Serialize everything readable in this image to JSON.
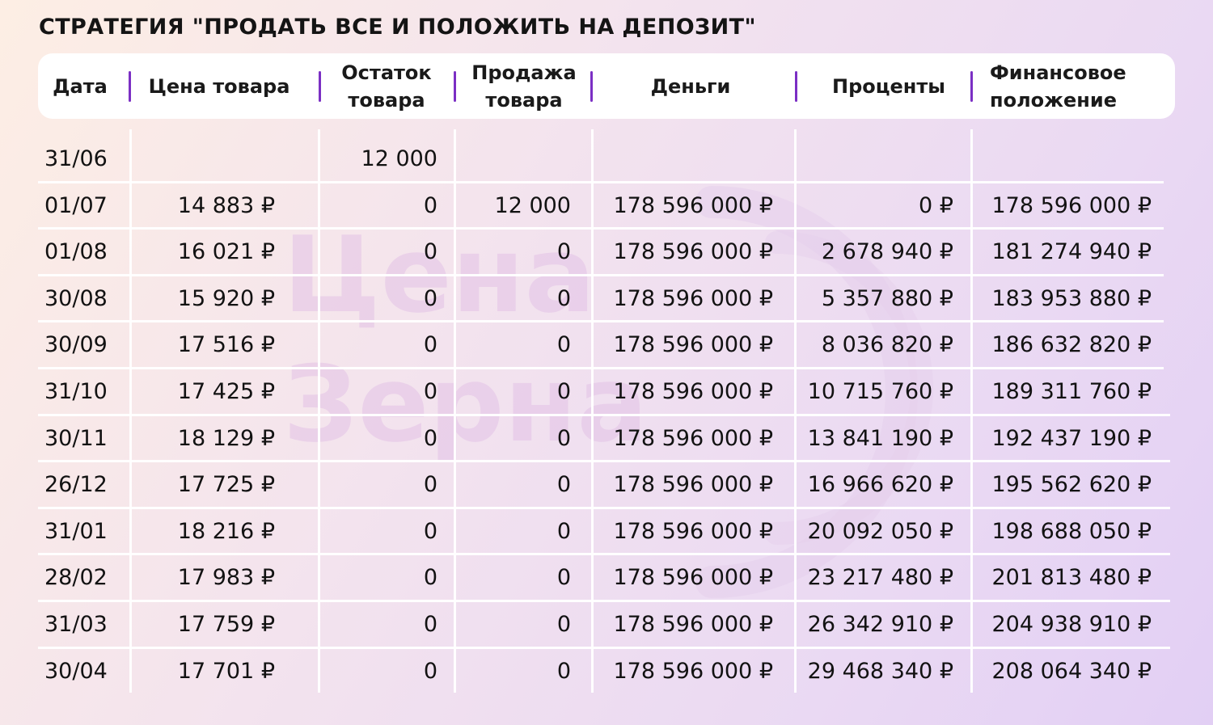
{
  "title": "СТРАТЕГИЯ \"ПРОДАТЬ ВСЕ И ПОЛОЖИТЬ НА ДЕПОЗИТ\"",
  "watermark": {
    "line1": "Цена",
    "line2": "Зерна",
    "color": "#e3c2e6"
  },
  "accent_color": "#7b2fc4",
  "columns": [
    "Дата",
    "Цена товара",
    "Остаток товара",
    "Продажа товара",
    "Деньги",
    "Проценты",
    "Финансовое положение"
  ],
  "rows": [
    [
      "31/06",
      "",
      "12 000",
      "",
      "",
      "",
      ""
    ],
    [
      "01/07",
      "14 883 ₽",
      "0",
      "12 000",
      "178 596 000 ₽",
      "0 ₽",
      "178 596 000 ₽"
    ],
    [
      "01/08",
      "16 021 ₽",
      "0",
      "0",
      "178 596 000 ₽",
      "2 678 940 ₽",
      "181 274 940 ₽"
    ],
    [
      "30/08",
      "15 920 ₽",
      "0",
      "0",
      "178 596 000 ₽",
      "5 357 880 ₽",
      "183 953 880 ₽"
    ],
    [
      "30/09",
      "17 516 ₽",
      "0",
      "0",
      "178 596 000 ₽",
      "8 036 820 ₽",
      "186 632 820 ₽"
    ],
    [
      "31/10",
      "17 425 ₽",
      "0",
      "0",
      "178 596 000 ₽",
      "10 715 760 ₽",
      "189 311 760 ₽"
    ],
    [
      "30/11",
      "18 129 ₽",
      "0",
      "0",
      "178 596 000 ₽",
      "13 841 190 ₽",
      "192 437 190 ₽"
    ],
    [
      "26/12",
      "17 725 ₽",
      "0",
      "0",
      "178 596 000 ₽",
      "16 966 620 ₽",
      "195 562 620 ₽"
    ],
    [
      "31/01",
      "18 216 ₽",
      "0",
      "0",
      "178 596 000 ₽",
      "20 092 050 ₽",
      "198 688 050 ₽"
    ],
    [
      "28/02",
      "17 983 ₽",
      "0",
      "0",
      "178 596 000 ₽",
      "23 217 480 ₽",
      "201 813 480 ₽"
    ],
    [
      "31/03",
      "17 759 ₽",
      "0",
      "0",
      "178 596 000 ₽",
      "26 342 910 ₽",
      "204 938 910 ₽"
    ],
    [
      "30/04",
      "17 701 ₽",
      "0",
      "0",
      "178 596 000 ₽",
      "29 468 340 ₽",
      "208 064 340 ₽"
    ]
  ]
}
